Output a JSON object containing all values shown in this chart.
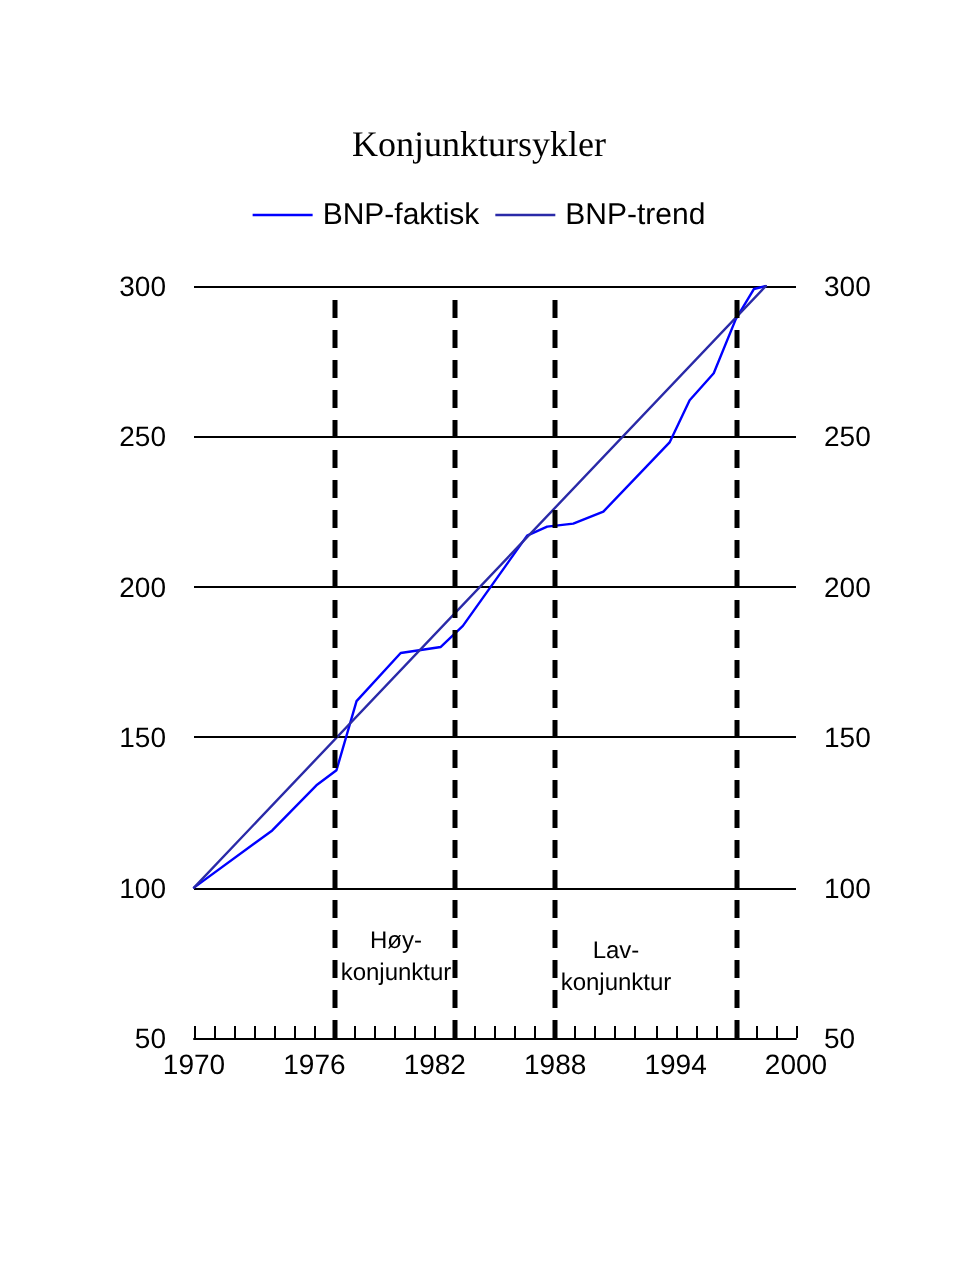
{
  "chart_data": {
    "type": "line",
    "title": "Konjunktursykler",
    "xlim": [
      1970,
      2000
    ],
    "ylim": [
      50,
      300
    ],
    "y2lim": [
      50,
      300
    ],
    "xticks": [
      1970,
      {
        "value": 1971,
        "label": null
      },
      {
        "value": 1972,
        "label": null
      },
      {
        "value": 1973,
        "label": null
      },
      {
        "value": 1974,
        "label": null
      },
      {
        "value": 1975,
        "label": null
      },
      1976,
      {
        "value": 1977,
        "label": null
      },
      {
        "value": 1978,
        "label": null
      },
      {
        "value": 1979,
        "label": null
      },
      {
        "value": 1980,
        "label": null
      },
      {
        "value": 1981,
        "label": null
      },
      1982,
      {
        "value": 1983,
        "label": null
      },
      {
        "value": 1984,
        "label": null
      },
      {
        "value": 1985,
        "label": null
      },
      {
        "value": 1986,
        "label": null
      },
      {
        "value": 1987,
        "label": null
      },
      1988,
      {
        "value": 1989,
        "label": null
      },
      {
        "value": 1990,
        "label": null
      },
      {
        "value": 1991,
        "label": null
      },
      {
        "value": 1992,
        "label": null
      },
      {
        "value": 1993,
        "label": null
      },
      1994,
      {
        "value": 1995,
        "label": null
      },
      {
        "value": 1996,
        "label": null
      },
      {
        "value": 1997,
        "label": null
      },
      {
        "value": 1998,
        "label": null
      },
      {
        "value": 1999,
        "label": null
      },
      2000
    ],
    "yticks": [
      50,
      100,
      150,
      200,
      250,
      300
    ],
    "y2ticks": [
      50,
      100,
      150,
      200,
      250,
      300
    ],
    "grid": "y",
    "legend": "top",
    "marker": "none",
    "line_style": "solid",
    "series": [
      {
        "name": "BNP-faktisk",
        "color": "#0000ff",
        "x": [
          1970,
          1973.9,
          1976.1,
          1977.1,
          1978.1,
          1980.3,
          1982.3,
          1983.4,
          1986.6,
          1987.6,
          1988.9,
          1990.4,
          1993.7,
          1994.7,
          1995.9,
          1997.0,
          1997.9,
          1998.5
        ],
        "values": [
          100,
          119,
          134,
          139,
          162,
          178,
          180,
          187,
          217,
          220,
          221,
          225,
          248,
          262,
          271,
          289,
          299,
          300
        ]
      },
      {
        "name": "BNP-trend",
        "color": "#2a2aa8",
        "x": [
          1970,
          1998.5
        ],
        "values": [
          100,
          300
        ]
      }
    ],
    "ref_lines": [
      {
        "axis": "x",
        "value": 1977,
        "color": "#000000",
        "line_style": "dashed"
      },
      {
        "axis": "x",
        "value": 1983,
        "color": "#000000",
        "line_style": "dashed"
      },
      {
        "axis": "x",
        "value": 1988,
        "color": "#000000",
        "line_style": "dashed"
      },
      {
        "axis": "x",
        "value": 1997,
        "color": "#000000",
        "line_style": "dashed"
      }
    ],
    "annotations": [
      "Høy-\nkonjunktur",
      "Lav-\nkonjunktur"
    ]
  }
}
